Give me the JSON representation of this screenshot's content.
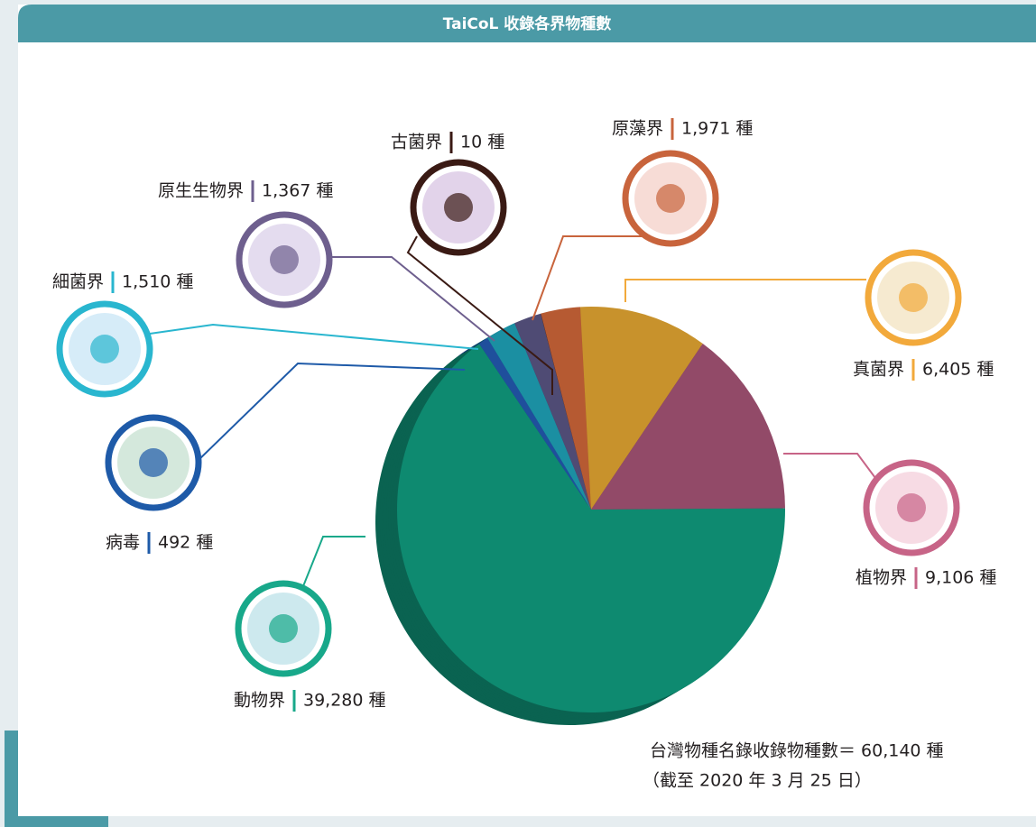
{
  "chart_data": {
    "type": "pie",
    "title": "TaiCoL 收錄各界物種數",
    "categories": [
      "原藻界",
      "真菌界",
      "植物界",
      "動物界",
      "病毒",
      "細菌界",
      "原生生物界",
      "古菌界"
    ],
    "values": [
      1971,
      6405,
      9106,
      39280,
      492,
      1510,
      1367,
      10
    ],
    "value_labels": [
      "1,971 種",
      "6,405 種",
      "9,106 種",
      "39,280 種",
      "492 種",
      "1,510 種",
      "1,367 種",
      "10 種"
    ],
    "colors": [
      "#b65a32",
      "#c8922c",
      "#924a68",
      "#0e8a70",
      "#1f4f9c",
      "#1b8fa2",
      "#4f4b74",
      "#3a1e1c"
    ],
    "annotations": [
      "台灣物種名錄收錄物種數＝ 60,140 種",
      "（截至 2020 年 3 月 25 日）"
    ]
  }
}
